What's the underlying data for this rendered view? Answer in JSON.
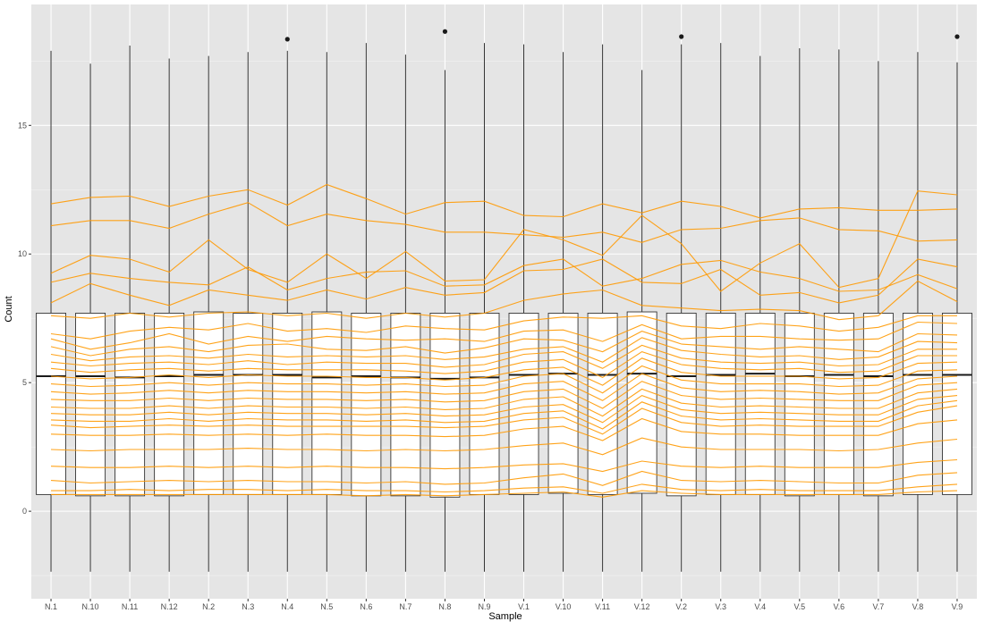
{
  "chart_data": {
    "type": "boxplot",
    "xlabel": "Sample",
    "ylabel": "Count",
    "ylim": [
      -3.4,
      19.7
    ],
    "yticks": [
      0,
      5,
      10,
      15
    ],
    "grid": true,
    "legend": "none",
    "categories": [
      "N.1",
      "N.10",
      "N.11",
      "N.12",
      "N.2",
      "N.3",
      "N.4",
      "N.5",
      "N.6",
      "N.7",
      "N.8",
      "N.9",
      "V.1",
      "V.10",
      "V.11",
      "V.12",
      "V.2",
      "V.3",
      "V.4",
      "V.5",
      "V.6",
      "V.7",
      "V.8",
      "V.9"
    ],
    "boxes": [
      {
        "q1": 0.65,
        "median": 5.25,
        "q3": 7.7,
        "whisker_low": -2.35,
        "whisker_high": 17.9,
        "outliers": []
      },
      {
        "q1": 0.6,
        "median": 5.25,
        "q3": 7.7,
        "whisker_low": -2.35,
        "whisker_high": 17.4,
        "outliers": []
      },
      {
        "q1": 0.6,
        "median": 5.2,
        "q3": 7.7,
        "whisker_low": -2.35,
        "whisker_high": 18.1,
        "outliers": []
      },
      {
        "q1": 0.6,
        "median": 5.25,
        "q3": 7.7,
        "whisker_low": -2.35,
        "whisker_high": 17.6,
        "outliers": []
      },
      {
        "q1": 0.65,
        "median": 5.3,
        "q3": 7.75,
        "whisker_low": -2.35,
        "whisker_high": 17.7,
        "outliers": []
      },
      {
        "q1": 0.65,
        "median": 5.3,
        "q3": 7.7,
        "whisker_low": -2.35,
        "whisker_high": 17.85,
        "outliers": []
      },
      {
        "q1": 0.65,
        "median": 5.3,
        "q3": 7.7,
        "whisker_low": -2.35,
        "whisker_high": 17.9,
        "outliers": [
          18.35
        ]
      },
      {
        "q1": 0.65,
        "median": 5.2,
        "q3": 7.75,
        "whisker_low": -2.35,
        "whisker_high": 17.85,
        "outliers": []
      },
      {
        "q1": 0.6,
        "median": 5.25,
        "q3": 7.7,
        "whisker_low": -2.35,
        "whisker_high": 18.2,
        "outliers": []
      },
      {
        "q1": 0.6,
        "median": 5.2,
        "q3": 7.7,
        "whisker_low": -2.35,
        "whisker_high": 17.75,
        "outliers": []
      },
      {
        "q1": 0.55,
        "median": 5.15,
        "q3": 7.7,
        "whisker_low": -2.35,
        "whisker_high": 17.15,
        "outliers": [
          18.65
        ]
      },
      {
        "q1": 0.65,
        "median": 5.2,
        "q3": 7.7,
        "whisker_low": -2.35,
        "whisker_high": 18.2,
        "outliers": []
      },
      {
        "q1": 0.65,
        "median": 5.3,
        "q3": 7.7,
        "whisker_low": -2.35,
        "whisker_high": 18.15,
        "outliers": []
      },
      {
        "q1": 0.7,
        "median": 5.35,
        "q3": 7.7,
        "whisker_low": -2.35,
        "whisker_high": 17.85,
        "outliers": []
      },
      {
        "q1": 0.65,
        "median": 5.3,
        "q3": 7.7,
        "whisker_low": -2.35,
        "whisker_high": 18.15,
        "outliers": []
      },
      {
        "q1": 0.7,
        "median": 5.35,
        "q3": 7.75,
        "whisker_low": -2.35,
        "whisker_high": 17.15,
        "outliers": []
      },
      {
        "q1": 0.6,
        "median": 5.25,
        "q3": 7.7,
        "whisker_low": -2.35,
        "whisker_high": 18.15,
        "outliers": [
          18.45
        ]
      },
      {
        "q1": 0.65,
        "median": 5.3,
        "q3": 7.7,
        "whisker_low": -2.35,
        "whisker_high": 18.2,
        "outliers": []
      },
      {
        "q1": 0.65,
        "median": 5.35,
        "q3": 7.7,
        "whisker_low": -2.35,
        "whisker_high": 17.7,
        "outliers": []
      },
      {
        "q1": 0.6,
        "median": 5.25,
        "q3": 7.7,
        "whisker_low": -2.35,
        "whisker_high": 18.0,
        "outliers": []
      },
      {
        "q1": 0.65,
        "median": 5.3,
        "q3": 7.7,
        "whisker_low": -2.35,
        "whisker_high": 17.95,
        "outliers": []
      },
      {
        "q1": 0.6,
        "median": 5.25,
        "q3": 7.7,
        "whisker_low": -2.35,
        "whisker_high": 17.5,
        "outliers": []
      },
      {
        "q1": 0.65,
        "median": 5.3,
        "q3": 7.7,
        "whisker_low": -2.35,
        "whisker_high": 17.85,
        "outliers": []
      },
      {
        "q1": 0.65,
        "median": 5.3,
        "q3": 7.7,
        "whisker_low": -2.35,
        "whisker_high": 17.45,
        "outliers": [
          18.45
        ]
      }
    ],
    "lines": [
      [
        11.95,
        12.2,
        12.25,
        11.85,
        12.25,
        12.5,
        11.9,
        12.7,
        12.15,
        11.55,
        12.0,
        12.05,
        11.5,
        11.45,
        11.95,
        11.6,
        12.05,
        11.85,
        11.4,
        11.75,
        11.8,
        11.7,
        11.7,
        11.75
      ],
      [
        11.1,
        11.3,
        11.3,
        11.0,
        11.55,
        12.0,
        11.1,
        11.55,
        11.3,
        11.15,
        10.85,
        10.85,
        10.75,
        10.65,
        10.85,
        10.45,
        10.95,
        11.0,
        11.3,
        11.4,
        10.95,
        10.9,
        10.5,
        10.55
      ],
      [
        9.25,
        9.95,
        9.8,
        9.3,
        10.55,
        9.4,
        8.9,
        10.0,
        9.05,
        10.1,
        8.95,
        9.0,
        10.95,
        10.55,
        9.95,
        11.5,
        10.4,
        8.55,
        9.65,
        10.4,
        8.7,
        9.05,
        12.45,
        12.3
      ],
      [
        8.9,
        9.25,
        9.05,
        8.9,
        8.8,
        9.5,
        8.6,
        9.05,
        9.3,
        9.35,
        8.75,
        8.8,
        9.55,
        9.8,
        8.75,
        9.05,
        9.6,
        9.75,
        9.3,
        9.05,
        8.55,
        8.6,
        9.2,
        8.65
      ],
      [
        8.1,
        8.85,
        8.4,
        8.0,
        8.6,
        8.4,
        8.2,
        8.6,
        8.25,
        8.7,
        8.4,
        8.5,
        9.35,
        9.4,
        9.8,
        8.9,
        8.85,
        9.4,
        8.4,
        8.5,
        8.1,
        8.4,
        9.8,
        9.5
      ],
      [
        7.6,
        7.5,
        7.7,
        7.55,
        7.7,
        7.75,
        7.6,
        7.7,
        7.5,
        7.7,
        7.55,
        7.7,
        8.2,
        8.45,
        8.6,
        8.0,
        7.9,
        7.8,
        7.85,
        7.8,
        7.45,
        7.6,
        8.95,
        8.15
      ],
      [
        6.9,
        6.7,
        7.0,
        7.15,
        7.05,
        7.3,
        7.0,
        7.1,
        6.95,
        7.2,
        7.1,
        7.05,
        7.4,
        7.55,
        7.5,
        7.6,
        7.2,
        7.1,
        7.3,
        7.2,
        7.0,
        7.15,
        7.6,
        7.6
      ],
      [
        6.7,
        6.3,
        6.55,
        6.9,
        6.5,
        6.8,
        6.6,
        6.8,
        6.7,
        6.65,
        6.7,
        6.6,
        7.0,
        7.05,
        6.6,
        7.25,
        6.7,
        6.8,
        6.8,
        6.7,
        6.65,
        6.7,
        7.35,
        7.3
      ],
      [
        6.4,
        6.05,
        6.3,
        6.4,
        6.2,
        6.45,
        6.5,
        6.3,
        6.25,
        6.4,
        6.15,
        6.35,
        6.7,
        6.65,
        6.2,
        7.0,
        6.5,
        6.4,
        6.3,
        6.4,
        6.3,
        6.2,
        6.9,
        6.85
      ],
      [
        6.1,
        5.85,
        6.0,
        6.05,
        5.95,
        6.1,
        6.0,
        6.05,
        6.0,
        6.05,
        5.9,
        6.0,
        6.3,
        6.4,
        5.8,
        6.75,
        6.25,
        6.1,
        6.0,
        6.05,
        5.9,
        6.0,
        6.6,
        6.55
      ],
      [
        5.8,
        5.65,
        5.75,
        5.8,
        5.7,
        5.85,
        5.7,
        5.8,
        5.75,
        5.75,
        5.6,
        5.7,
        6.1,
        6.2,
        5.55,
        6.45,
        5.95,
        5.8,
        5.75,
        5.8,
        5.65,
        5.7,
        6.3,
        6.3
      ],
      [
        5.55,
        5.4,
        5.5,
        5.55,
        5.45,
        5.55,
        5.5,
        5.5,
        5.5,
        5.45,
        5.35,
        5.45,
        5.8,
        5.9,
        5.2,
        6.2,
        5.7,
        5.55,
        5.5,
        5.55,
        5.4,
        5.45,
        6.05,
        6.05
      ],
      [
        5.25,
        5.15,
        5.2,
        5.3,
        5.2,
        5.3,
        5.25,
        5.25,
        5.2,
        5.2,
        5.1,
        5.2,
        5.5,
        5.6,
        4.9,
        5.95,
        5.4,
        5.25,
        5.25,
        5.25,
        5.15,
        5.2,
        5.75,
        5.8
      ],
      [
        4.95,
        4.85,
        4.9,
        5.0,
        4.9,
        5.0,
        4.95,
        4.95,
        4.9,
        4.95,
        4.85,
        4.9,
        5.25,
        5.35,
        4.6,
        5.65,
        5.1,
        4.95,
        4.95,
        4.95,
        4.85,
        4.9,
        5.45,
        5.5
      ],
      [
        4.65,
        4.55,
        4.6,
        4.7,
        4.6,
        4.7,
        4.65,
        4.65,
        4.6,
        4.65,
        4.55,
        4.6,
        4.95,
        5.05,
        4.3,
        5.35,
        4.8,
        4.65,
        4.7,
        4.65,
        4.55,
        4.6,
        5.15,
        5.25
      ],
      [
        4.35,
        4.3,
        4.3,
        4.4,
        4.3,
        4.4,
        4.35,
        4.35,
        4.3,
        4.35,
        4.25,
        4.3,
        4.65,
        4.75,
        4.0,
        5.05,
        4.5,
        4.35,
        4.4,
        4.35,
        4.3,
        4.3,
        4.9,
        5.0
      ],
      [
        4.05,
        4.0,
        4.0,
        4.1,
        4.0,
        4.1,
        4.05,
        4.05,
        4.0,
        4.05,
        3.95,
        4.0,
        4.35,
        4.45,
        3.7,
        4.75,
        4.2,
        4.05,
        4.1,
        4.05,
        4.0,
        4.0,
        4.6,
        4.75
      ],
      [
        3.8,
        3.75,
        3.75,
        3.85,
        3.75,
        3.85,
        3.8,
        3.8,
        3.75,
        3.8,
        3.7,
        3.75,
        4.05,
        4.15,
        3.45,
        4.5,
        3.95,
        3.8,
        3.85,
        3.8,
        3.75,
        3.75,
        4.35,
        4.5
      ],
      [
        3.55,
        3.5,
        3.5,
        3.6,
        3.5,
        3.6,
        3.55,
        3.55,
        3.5,
        3.55,
        3.45,
        3.5,
        3.8,
        3.9,
        3.2,
        4.25,
        3.7,
        3.55,
        3.6,
        3.55,
        3.5,
        3.5,
        4.1,
        4.3
      ],
      [
        3.35,
        3.25,
        3.3,
        3.35,
        3.3,
        3.35,
        3.3,
        3.3,
        3.3,
        3.3,
        3.25,
        3.3,
        3.55,
        3.65,
        3.0,
        4.0,
        3.45,
        3.3,
        3.35,
        3.3,
        3.3,
        3.3,
        3.85,
        4.1
      ],
      [
        3.0,
        2.95,
        2.95,
        3.0,
        2.95,
        3.0,
        2.95,
        3.0,
        2.95,
        2.95,
        2.9,
        2.95,
        3.2,
        3.3,
        2.75,
        3.6,
        3.1,
        3.0,
        3.0,
        2.95,
        2.95,
        2.95,
        3.4,
        3.55
      ],
      [
        2.4,
        2.35,
        2.4,
        2.4,
        2.4,
        2.45,
        2.4,
        2.4,
        2.35,
        2.4,
        2.35,
        2.4,
        2.55,
        2.65,
        2.2,
        2.85,
        2.5,
        2.4,
        2.4,
        2.4,
        2.35,
        2.4,
        2.65,
        2.8
      ],
      [
        1.75,
        1.7,
        1.7,
        1.75,
        1.7,
        1.75,
        1.7,
        1.75,
        1.7,
        1.7,
        1.65,
        1.7,
        1.8,
        1.85,
        1.55,
        1.95,
        1.75,
        1.7,
        1.75,
        1.7,
        1.7,
        1.7,
        1.9,
        2.0
      ],
      [
        1.2,
        1.1,
        1.15,
        1.2,
        1.15,
        1.2,
        1.15,
        1.15,
        1.1,
        1.15,
        1.05,
        1.1,
        1.3,
        1.45,
        1.0,
        1.55,
        1.2,
        1.15,
        1.2,
        1.15,
        1.1,
        1.1,
        1.4,
        1.5
      ],
      [
        0.8,
        0.8,
        0.85,
        0.8,
        0.85,
        0.85,
        0.8,
        0.85,
        0.8,
        0.8,
        0.75,
        0.8,
        0.9,
        0.95,
        0.7,
        1.05,
        0.85,
        0.8,
        0.85,
        0.8,
        0.8,
        0.8,
        0.95,
        1.05
      ],
      [
        0.65,
        0.65,
        0.65,
        0.65,
        0.65,
        0.65,
        0.65,
        0.65,
        0.6,
        0.65,
        0.6,
        0.65,
        0.7,
        0.75,
        0.55,
        0.8,
        0.7,
        0.65,
        0.65,
        0.65,
        0.65,
        0.65,
        0.75,
        0.8
      ]
    ],
    "colors": {
      "panel_background": "#e5e5e5",
      "grid_major": "#ffffff",
      "box_fill": "#ffffff",
      "box_stroke": "#333333",
      "line_color": "#ff9900",
      "tick_text": "#4d4d4d"
    }
  }
}
